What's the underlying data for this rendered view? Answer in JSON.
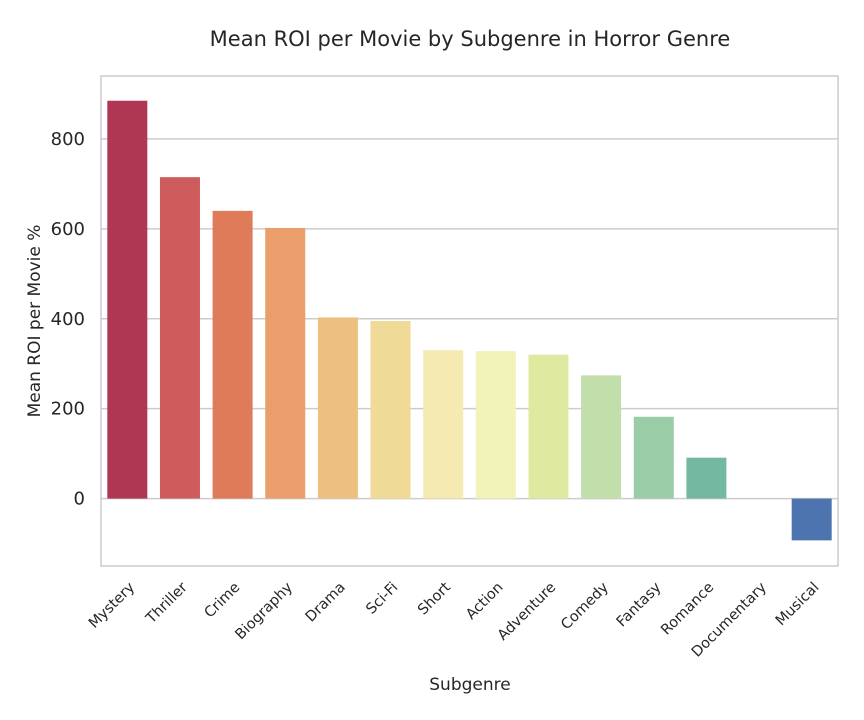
{
  "chart_data": {
    "type": "bar",
    "title": "Mean ROI per Movie by Subgenre in Horror Genre",
    "xlabel": "Subgenre",
    "ylabel": "Mean ROI per Movie %",
    "categories": [
      "Mystery",
      "Thriller",
      "Crime",
      "Biography",
      "Drama",
      "Sci-Fi",
      "Short",
      "Action",
      "Adventure",
      "Comedy",
      "Fantasy",
      "Romance",
      "Documentary",
      "Musical"
    ],
    "values": [
      885,
      715,
      640,
      602,
      403,
      395,
      330,
      328,
      320,
      274,
      182,
      91,
      0,
      -93
    ],
    "colors": [
      "#b03753",
      "#cf5c5c",
      "#e07b59",
      "#e99e6c",
      "#edbf80",
      "#f0da97",
      "#f5eab1",
      "#f2f3b8",
      "#dfeaa0",
      "#c2deab",
      "#9bcca8",
      "#73b9a1",
      "#5f98b5",
      "#4e74b0"
    ],
    "ylim": [
      -150,
      940
    ],
    "yticks": [
      0,
      200,
      400,
      600,
      800
    ],
    "grid": true,
    "legend": "none"
  }
}
